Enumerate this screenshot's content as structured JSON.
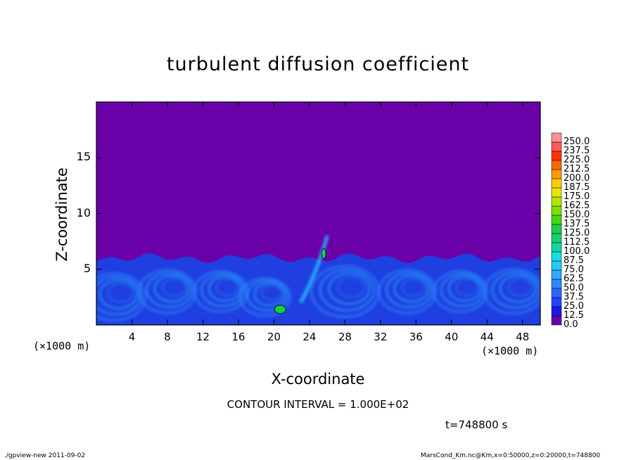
{
  "chart_data": {
    "type": "heatmap",
    "title": "turbulent diffusion coefficient",
    "xlabel": "X-coordinate",
    "ylabel": "Z-coordinate",
    "x_unit_label_left": "(×1000 m)",
    "x_unit_label_right": "(×1000 m)",
    "xlim": [
      0,
      50
    ],
    "ylim": [
      0,
      20
    ],
    "x_ticks": [
      "4",
      "8",
      "12",
      "16",
      "20",
      "24",
      "28",
      "32",
      "36",
      "40",
      "44",
      "48"
    ],
    "y_ticks": [
      "5",
      "10",
      "15"
    ],
    "colorbar": {
      "levels": [
        "0.0",
        "12.5",
        "25.0",
        "37.5",
        "50.0",
        "62.5",
        "75.0",
        "87.5",
        "100.0",
        "112.5",
        "125.0",
        "137.5",
        "150.0",
        "162.5",
        "175.0",
        "187.5",
        "200.0",
        "212.5",
        "225.0",
        "237.5",
        "250.0"
      ],
      "colors": [
        "#6a00a8",
        "#1a1ae6",
        "#2244ff",
        "#2a66ff",
        "#2f86ff",
        "#30a8ff",
        "#26c8ff",
        "#16e0e0",
        "#10d8a0",
        "#12d070",
        "#18d040",
        "#40d810",
        "#7ae000",
        "#b0e600",
        "#e6e600",
        "#ffcc00",
        "#ff9900",
        "#ff6600",
        "#ff3300",
        "#ff5a5a",
        "#ff9090"
      ]
    },
    "contour_interval_text": "CONTOUR INTERVAL = 1.000E+02",
    "time_text": "t=748800 s",
    "description_field_mixed_layer_top_km": 6,
    "background_value": 0.0
  },
  "footer": {
    "left": "./gpview-new  2011-09-02",
    "right": "MarsCond_Km.nc@Km,x=0:50000,z=0:20000,t=748800"
  }
}
